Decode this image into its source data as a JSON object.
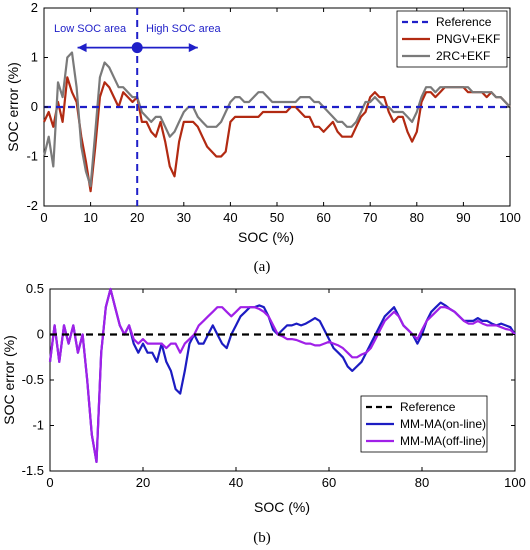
{
  "chart_data": [
    {
      "type": "line",
      "panel_label": "(a)",
      "xlabel": "SOC (%)",
      "ylabel": "SOC error (%)",
      "xlim": [
        0,
        100
      ],
      "ylim": [
        -2,
        2
      ],
      "x_ticks": [
        0,
        10,
        20,
        30,
        40,
        50,
        60,
        70,
        80,
        90,
        100
      ],
      "y_ticks": [
        -2,
        -1,
        0,
        1,
        2
      ],
      "grid": false,
      "legend_position": "top-right",
      "annotations": {
        "low_label": "Low SOC area",
        "high_label": "High SOC area",
        "divider_x": 20,
        "arrow_y": 1.2,
        "arrow_from": 7.2,
        "arrow_to": 33.0,
        "color": "#1f1fc8"
      },
      "series": [
        {
          "name": "Reference",
          "color": "#1f1fc8",
          "style": "dashed",
          "x": [
            0,
            100
          ],
          "y": [
            0,
            0
          ]
        },
        {
          "name": "PNGV+EKF",
          "color": "#b22a12",
          "style": "solid",
          "x": [
            0,
            1,
            2,
            3,
            4,
            5,
            6,
            7,
            8,
            9,
            10,
            11,
            12,
            13,
            14,
            15,
            16,
            17,
            18,
            19,
            20,
            21,
            22,
            23,
            24,
            25,
            26,
            27,
            28,
            29,
            30,
            31,
            32,
            33,
            34,
            35,
            36,
            37,
            38,
            39,
            40,
            41,
            42,
            43,
            44,
            45,
            46,
            47,
            48,
            49,
            50,
            51,
            52,
            53,
            54,
            55,
            56,
            57,
            58,
            59,
            60,
            61,
            62,
            63,
            64,
            65,
            66,
            67,
            68,
            69,
            70,
            71,
            72,
            73,
            74,
            75,
            76,
            77,
            78,
            79,
            80,
            81,
            82,
            83,
            84,
            85,
            86,
            87,
            88,
            89,
            90,
            91,
            92,
            93,
            94,
            95,
            96,
            97,
            98,
            99,
            100
          ],
          "y": [
            -0.3,
            -0.1,
            -0.4,
            0.1,
            -0.3,
            0.6,
            0.3,
            0.1,
            -0.6,
            -1.1,
            -1.7,
            -0.8,
            0.2,
            0.5,
            0.4,
            0.2,
            0.0,
            0.3,
            0.2,
            0.1,
            0.2,
            -0.3,
            -0.3,
            -0.5,
            -0.6,
            -0.3,
            -0.7,
            -1.2,
            -1.4,
            -0.7,
            -0.3,
            -0.3,
            -0.3,
            -0.4,
            -0.6,
            -0.8,
            -0.9,
            -1.0,
            -1.0,
            -0.9,
            -0.3,
            -0.2,
            -0.2,
            -0.2,
            -0.2,
            -0.2,
            -0.2,
            -0.1,
            -0.1,
            -0.1,
            -0.1,
            -0.1,
            -0.1,
            0.0,
            0.0,
            -0.1,
            -0.2,
            -0.2,
            -0.4,
            -0.4,
            -0.5,
            -0.4,
            -0.3,
            -0.5,
            -0.6,
            -0.6,
            -0.6,
            -0.4,
            -0.2,
            -0.1,
            0.2,
            0.3,
            0.2,
            0.2,
            -0.1,
            -0.3,
            -0.2,
            -0.2,
            -0.5,
            -0.7,
            -0.5,
            0.1,
            0.3,
            0.3,
            0.2,
            0.3,
            0.4,
            0.4,
            0.4,
            0.4,
            0.4,
            0.3,
            0.3,
            0.3,
            0.3,
            0.2,
            0.3,
            0.2,
            0.2,
            0.1,
            0.0
          ]
        },
        {
          "name": "2RC+EKF",
          "color": "#7a7a7a",
          "style": "solid",
          "x": [
            0,
            1,
            2,
            3,
            4,
            5,
            6,
            7,
            8,
            9,
            10,
            11,
            12,
            13,
            14,
            15,
            16,
            17,
            18,
            19,
            20,
            21,
            22,
            23,
            24,
            25,
            26,
            27,
            28,
            29,
            30,
            31,
            32,
            33,
            34,
            35,
            36,
            37,
            38,
            39,
            40,
            41,
            42,
            43,
            44,
            45,
            46,
            47,
            48,
            49,
            50,
            51,
            52,
            53,
            54,
            55,
            56,
            57,
            58,
            59,
            60,
            61,
            62,
            63,
            64,
            65,
            66,
            67,
            68,
            69,
            70,
            71,
            72,
            73,
            74,
            75,
            76,
            77,
            78,
            79,
            80,
            81,
            82,
            83,
            84,
            85,
            86,
            87,
            88,
            89,
            90,
            91,
            92,
            93,
            94,
            95,
            96,
            97,
            98,
            99,
            100
          ],
          "y": [
            -1.0,
            -0.6,
            -1.2,
            0.5,
            0.2,
            1.0,
            1.1,
            0.4,
            -0.8,
            -1.3,
            -1.6,
            -0.5,
            0.6,
            0.9,
            0.8,
            0.6,
            0.4,
            0.4,
            0.3,
            0.2,
            0.2,
            -0.1,
            -0.2,
            -0.3,
            -0.2,
            -0.2,
            -0.4,
            -0.6,
            -0.5,
            -0.3,
            -0.1,
            0.0,
            0.0,
            -0.2,
            -0.3,
            -0.4,
            -0.4,
            -0.4,
            -0.3,
            -0.1,
            0.1,
            0.2,
            0.2,
            0.1,
            0.1,
            0.2,
            0.3,
            0.3,
            0.2,
            0.1,
            0.1,
            0.1,
            0.1,
            0.1,
            0.1,
            0.2,
            0.2,
            0.2,
            0.1,
            0.1,
            0.0,
            -0.1,
            -0.2,
            -0.3,
            -0.3,
            -0.4,
            -0.4,
            -0.3,
            -0.1,
            0.1,
            0.1,
            0.2,
            0.1,
            0.0,
            0.0,
            -0.1,
            -0.1,
            -0.1,
            -0.2,
            -0.3,
            -0.1,
            0.2,
            0.4,
            0.4,
            0.3,
            0.4,
            0.4,
            0.4,
            0.4,
            0.4,
            0.4,
            0.4,
            0.3,
            0.3,
            0.3,
            0.3,
            0.3,
            0.2,
            0.2,
            0.1,
            0.0
          ]
        }
      ]
    },
    {
      "type": "line",
      "panel_label": "(b)",
      "xlabel": "SOC (%)",
      "ylabel": "SOC error (%)",
      "xlim": [
        0,
        100
      ],
      "ylim": [
        -1.5,
        0.5
      ],
      "x_ticks": [
        0,
        20,
        40,
        60,
        80,
        100
      ],
      "y_ticks": [
        -1.5,
        -1,
        -0.5,
        0,
        0.5
      ],
      "grid": false,
      "legend_position": "bottom-right",
      "series": [
        {
          "name": "Reference",
          "color": "#000000",
          "style": "dashed",
          "x": [
            0,
            100
          ],
          "y": [
            0,
            0
          ]
        },
        {
          "name": "MM-MA(on-line)",
          "color": "#1c1cc2",
          "style": "solid",
          "x": [
            0,
            1,
            2,
            3,
            4,
            5,
            6,
            7,
            8,
            9,
            10,
            11,
            12,
            13,
            14,
            15,
            16,
            17,
            18,
            19,
            20,
            21,
            22,
            23,
            24,
            25,
            26,
            27,
            28,
            29,
            30,
            31,
            32,
            33,
            34,
            35,
            36,
            37,
            38,
            39,
            40,
            41,
            42,
            43,
            44,
            45,
            46,
            47,
            48,
            49,
            50,
            51,
            52,
            53,
            54,
            55,
            56,
            57,
            58,
            59,
            60,
            61,
            62,
            63,
            64,
            65,
            66,
            67,
            68,
            69,
            70,
            71,
            72,
            73,
            74,
            75,
            76,
            77,
            78,
            79,
            80,
            81,
            82,
            83,
            84,
            85,
            86,
            87,
            88,
            89,
            90,
            91,
            92,
            93,
            94,
            95,
            96,
            97,
            98,
            99,
            100
          ],
          "y": [
            -0.3,
            0.1,
            -0.3,
            0.1,
            -0.1,
            0.1,
            -0.2,
            0.0,
            -0.5,
            -1.1,
            -1.4,
            -0.2,
            0.3,
            0.5,
            0.3,
            0.1,
            0.0,
            0.1,
            -0.1,
            -0.2,
            -0.1,
            -0.2,
            -0.2,
            -0.3,
            -0.1,
            -0.3,
            -0.4,
            -0.6,
            -0.65,
            -0.4,
            -0.1,
            0.0,
            -0.1,
            -0.1,
            0.0,
            0.1,
            0.0,
            -0.1,
            -0.15,
            0.0,
            0.1,
            0.2,
            0.25,
            0.3,
            0.3,
            0.32,
            0.3,
            0.2,
            0.05,
            0.0,
            0.05,
            0.1,
            0.1,
            0.12,
            0.1,
            0.12,
            0.15,
            0.18,
            0.15,
            0.05,
            -0.05,
            -0.15,
            -0.2,
            -0.25,
            -0.35,
            -0.4,
            -0.35,
            -0.3,
            -0.2,
            -0.1,
            0.0,
            0.1,
            0.2,
            0.25,
            0.3,
            0.2,
            0.1,
            0.05,
            0.0,
            -0.1,
            0.0,
            0.15,
            0.25,
            0.3,
            0.35,
            0.32,
            0.28,
            0.25,
            0.2,
            0.15,
            0.15,
            0.15,
            0.18,
            0.15,
            0.15,
            0.12,
            0.1,
            0.12,
            0.1,
            0.08,
            0.0
          ]
        },
        {
          "name": "MM-MA(off-line)",
          "color": "#a020e8",
          "style": "solid",
          "x": [
            0,
            1,
            2,
            3,
            4,
            5,
            6,
            7,
            8,
            9,
            10,
            11,
            12,
            13,
            14,
            15,
            16,
            17,
            18,
            19,
            20,
            21,
            22,
            23,
            24,
            25,
            26,
            27,
            28,
            29,
            30,
            31,
            32,
            33,
            34,
            35,
            36,
            37,
            38,
            39,
            40,
            41,
            42,
            43,
            44,
            45,
            46,
            47,
            48,
            49,
            50,
            51,
            52,
            53,
            54,
            55,
            56,
            57,
            58,
            59,
            60,
            61,
            62,
            63,
            64,
            65,
            66,
            67,
            68,
            69,
            70,
            71,
            72,
            73,
            74,
            75,
            76,
            77,
            78,
            79,
            80,
            81,
            82,
            83,
            84,
            85,
            86,
            87,
            88,
            89,
            90,
            91,
            92,
            93,
            94,
            95,
            96,
            97,
            98,
            99,
            100
          ],
          "y": [
            -0.3,
            0.1,
            -0.3,
            0.1,
            -0.1,
            0.1,
            -0.2,
            0.0,
            -0.5,
            -1.1,
            -1.4,
            -0.2,
            0.3,
            0.5,
            0.3,
            0.1,
            0.0,
            0.1,
            -0.05,
            -0.1,
            -0.05,
            -0.1,
            -0.1,
            -0.1,
            -0.1,
            -0.15,
            -0.1,
            -0.1,
            -0.2,
            -0.1,
            -0.05,
            0.0,
            0.1,
            0.15,
            0.2,
            0.25,
            0.3,
            0.3,
            0.25,
            0.2,
            0.25,
            0.3,
            0.3,
            0.3,
            0.3,
            0.28,
            0.25,
            0.2,
            0.1,
            0.0,
            -0.02,
            -0.05,
            -0.05,
            -0.06,
            -0.08,
            -0.1,
            -0.1,
            -0.12,
            -0.12,
            -0.1,
            -0.08,
            -0.1,
            -0.12,
            -0.15,
            -0.2,
            -0.25,
            -0.25,
            -0.22,
            -0.2,
            -0.15,
            -0.05,
            0.05,
            0.15,
            0.2,
            0.25,
            0.2,
            0.1,
            0.05,
            0.0,
            -0.05,
            0.05,
            0.15,
            0.2,
            0.25,
            0.3,
            0.3,
            0.28,
            0.25,
            0.2,
            0.15,
            0.12,
            0.12,
            0.15,
            0.12,
            0.1,
            0.1,
            0.1,
            0.08,
            0.06,
            0.05,
            0.0
          ]
        }
      ]
    }
  ]
}
